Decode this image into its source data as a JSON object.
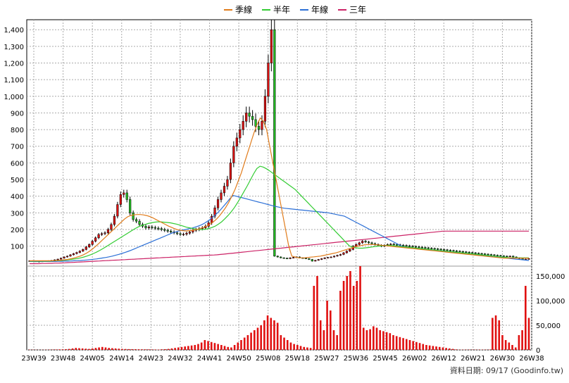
{
  "chart_data": [
    {
      "type": "candlestick",
      "legend_position": "top-center",
      "legend": [
        {
          "label": "季線",
          "color": "#e07b1a"
        },
        {
          "label": "半年",
          "color": "#33cc33"
        },
        {
          "label": "年線",
          "color": "#2b6fd6"
        },
        {
          "label": "三年",
          "color": "#cc2266"
        }
      ],
      "y_ticks": [
        100,
        200,
        300,
        400,
        500,
        600,
        700,
        800,
        900,
        1000,
        1100,
        1200,
        1300,
        1400
      ],
      "y_tick_labels": [
        "100",
        "200",
        "300",
        "400",
        "500",
        "600",
        "700",
        "800",
        "900",
        "1,000",
        "1,100",
        "1,200",
        "1,300",
        "1,400"
      ],
      "ylim": [
        -20,
        1460
      ],
      "x_ticks": [
        "23W39",
        "23W48",
        "24W05",
        "24W14",
        "24W23",
        "24W32",
        "24W41",
        "24W50",
        "25W08",
        "25W18",
        "25W27",
        "25W36",
        "25W45",
        "26W02",
        "26W12",
        "26W21",
        "26W30",
        "26W38"
      ],
      "grid": true,
      "up_color": "#dd1111",
      "down_color": "#22bb22",
      "closes": [
        12,
        10,
        9,
        8,
        10,
        11,
        12,
        14,
        18,
        22,
        28,
        35,
        40,
        48,
        55,
        62,
        70,
        80,
        95,
        110,
        130,
        150,
        170,
        175,
        180,
        200,
        230,
        280,
        350,
        410,
        420,
        380,
        300,
        260,
        250,
        230,
        220,
        210,
        215,
        212,
        208,
        205,
        200,
        195,
        190,
        185,
        180,
        175,
        170,
        172,
        178,
        185,
        195,
        200,
        205,
        210,
        220,
        240,
        280,
        330,
        380,
        420,
        460,
        500,
        600,
        700,
        750,
        800,
        850,
        900,
        880,
        860,
        820,
        800,
        850,
        1000,
        1200,
        1400,
        40,
        35,
        30,
        28,
        25,
        30,
        32,
        35,
        30,
        28,
        25,
        20,
        10,
        15,
        20,
        25,
        30,
        32,
        35,
        40,
        45,
        50,
        60,
        70,
        80,
        100,
        110,
        120,
        130,
        125,
        120,
        115,
        110,
        105,
        100,
        105,
        110,
        112,
        110,
        108,
        106,
        104,
        102,
        100,
        98,
        96,
        94,
        92,
        90,
        88,
        86,
        84,
        82,
        80,
        78,
        76,
        74,
        72,
        70,
        68,
        66,
        64,
        62,
        60,
        58,
        56,
        54,
        52,
        50,
        48,
        46,
        44,
        42,
        40,
        38,
        40,
        35,
        30,
        25,
        20,
        22,
        25
      ],
      "ma_quarter": [
        12,
        12,
        12,
        12,
        12,
        12,
        12,
        12,
        13,
        14,
        16,
        18,
        20,
        24,
        28,
        34,
        40,
        48,
        58,
        70,
        84,
        100,
        118,
        136,
        154,
        172,
        190,
        208,
        226,
        244,
        262,
        276,
        284,
        288,
        290,
        290,
        288,
        284,
        278,
        270,
        260,
        250,
        240,
        230,
        220,
        212,
        204,
        198,
        194,
        192,
        192,
        194,
        196,
        200,
        206,
        212,
        220,
        230,
        244,
        260,
        280,
        304,
        330,
        362,
        400,
        440,
        490,
        540,
        600,
        660,
        720,
        780,
        830,
        870,
        850,
        800,
        700,
        600,
        500,
        400,
        300,
        200,
        100,
        40,
        35,
        30,
        30,
        30,
        32,
        34,
        36,
        38,
        40,
        44,
        48,
        52,
        56,
        60,
        66,
        72,
        78,
        84,
        90,
        96,
        100,
        104,
        108,
        110,
        110,
        110,
        108,
        106,
        104,
        102,
        100,
        98,
        96,
        94,
        92,
        90,
        88,
        86,
        84,
        82,
        80,
        78,
        76,
        74,
        72,
        70,
        68,
        66,
        64,
        62,
        60,
        58,
        56,
        54,
        52,
        50,
        48,
        46,
        44,
        42,
        40,
        38,
        36,
        34,
        32,
        30,
        28,
        28,
        28,
        28,
        28,
        28,
        28,
        28,
        28
      ],
      "ma_half": [
        10,
        10,
        10,
        10,
        10,
        10,
        10,
        11,
        12,
        13,
        14,
        16,
        18,
        20,
        23,
        26,
        30,
        35,
        41,
        48,
        56,
        65,
        75,
        86,
        98,
        110,
        122,
        134,
        146,
        158,
        170,
        182,
        194,
        206,
        216,
        224,
        230,
        236,
        240,
        244,
        246,
        246,
        244,
        242,
        240,
        236,
        232,
        226,
        220,
        214,
        210,
        206,
        202,
        200,
        200,
        202,
        206,
        212,
        220,
        232,
        246,
        264,
        284,
        306,
        332,
        362,
        394,
        428,
        462,
        498,
        534,
        566,
        580,
        575,
        565,
        552,
        538,
        524,
        510,
        496,
        482,
        468,
        454,
        440,
        420,
        400,
        380,
        360,
        340,
        320,
        300,
        280,
        260,
        240,
        220,
        200,
        180,
        160,
        140,
        120,
        100,
        95,
        90,
        88,
        88,
        90,
        92,
        95,
        98,
        100,
        102,
        104,
        105,
        104,
        102,
        100,
        98,
        96,
        94,
        92,
        90,
        88,
        86,
        84,
        82,
        80,
        78,
        76,
        74,
        72,
        70,
        68,
        66,
        64,
        62,
        60,
        58,
        56,
        54,
        52,
        50,
        48,
        46,
        44,
        42,
        40,
        38,
        36,
        34,
        32,
        30,
        30,
        30,
        30,
        30,
        30,
        30
      ],
      "ma_year": [
        8,
        8,
        8,
        8,
        8,
        8,
        8,
        8,
        8,
        9,
        9,
        10,
        10,
        11,
        12,
        13,
        14,
        15,
        17,
        19,
        21,
        23,
        26,
        29,
        32,
        36,
        40,
        45,
        50,
        56,
        62,
        69,
        76,
        84,
        92,
        100,
        108,
        116,
        124,
        132,
        140,
        148,
        156,
        164,
        172,
        180,
        186,
        192,
        196,
        200,
        204,
        208,
        214,
        220,
        228,
        238,
        250,
        264,
        280,
        298,
        318,
        340,
        362,
        386,
        404,
        400,
        395,
        390,
        385,
        380,
        375,
        370,
        365,
        360,
        355,
        350,
        345,
        340,
        336,
        332,
        328,
        326,
        324,
        322,
        320,
        318,
        316,
        314,
        312,
        310,
        308,
        306,
        304,
        302,
        300,
        296,
        292,
        288,
        284,
        280,
        270,
        260,
        250,
        240,
        230,
        220,
        210,
        200,
        190,
        180,
        170,
        160,
        150,
        140,
        130,
        120,
        110,
        100,
        95,
        90,
        88,
        86,
        84,
        82,
        80,
        78,
        76,
        74,
        72,
        70,
        68,
        66,
        64,
        62,
        60,
        58,
        56,
        54,
        52,
        50,
        48,
        46,
        44,
        42,
        40,
        38,
        36,
        34,
        32,
        30,
        28,
        26,
        24,
        22,
        20,
        18,
        16,
        14
      ],
      "ma_3year": [
        -5,
        -5,
        -5,
        -5,
        -4,
        -4,
        -3,
        -3,
        -2,
        -2,
        -1,
        0,
        1,
        2,
        3,
        4,
        5,
        6,
        7,
        8,
        9,
        10,
        11,
        12,
        13,
        14,
        15,
        16,
        17,
        18,
        19,
        20,
        21,
        22,
        23,
        24,
        25,
        26,
        27,
        28,
        29,
        30,
        31,
        32,
        33,
        34,
        35,
        36,
        37,
        38,
        39,
        40,
        41,
        42,
        43,
        44,
        45,
        46,
        47,
        48,
        50,
        52,
        54,
        56,
        58,
        60,
        62,
        64,
        66,
        68,
        70,
        72,
        74,
        76,
        78,
        80,
        82,
        84,
        86,
        88,
        90,
        92,
        94,
        96,
        98,
        100,
        102,
        104,
        106,
        108,
        110,
        112,
        114,
        116,
        118,
        120,
        122,
        124,
        126,
        128,
        130,
        132,
        134,
        136,
        138,
        140,
        142,
        144,
        146,
        148,
        150,
        152,
        154,
        156,
        158,
        160,
        162,
        164,
        166,
        168,
        170,
        172,
        174,
        176,
        178,
        180,
        182,
        184,
        186,
        188,
        190,
        190,
        190,
        190,
        190,
        190,
        190,
        190,
        190,
        190,
        190,
        190,
        190,
        190,
        190,
        190,
        190,
        190,
        190,
        190,
        190,
        190,
        190,
        190,
        190,
        190,
        190,
        190
      ],
      "volume_ticks": [
        0,
        50000,
        100000,
        150000
      ],
      "volume_tick_labels": [
        "0",
        "50,000",
        "100,000",
        "150,000"
      ],
      "volume_max": 170000,
      "volumes": [
        500,
        400,
        300,
        200,
        300,
        400,
        500,
        600,
        800,
        1000,
        1200,
        1500,
        2000,
        3000,
        4000,
        3500,
        3000,
        2500,
        2000,
        3000,
        4000,
        5000,
        6000,
        5000,
        4000,
        3500,
        3000,
        2500,
        2000,
        1800,
        1600,
        1500,
        1400,
        1300,
        1200,
        1100,
        1000,
        900,
        800,
        700,
        1200,
        1500,
        2000,
        3000,
        4000,
        5000,
        6000,
        7000,
        8000,
        9000,
        10000,
        12000,
        15000,
        20000,
        18000,
        16000,
        14000,
        12000,
        10000,
        8000,
        6000,
        5000,
        10000,
        15000,
        20000,
        25000,
        30000,
        35000,
        40000,
        45000,
        50000,
        60000,
        70000,
        65000,
        60000,
        55000,
        30000,
        25000,
        20000,
        15000,
        12000,
        10000,
        8000,
        6000,
        5000,
        4000,
        130000,
        150000,
        60000,
        40000,
        100000,
        80000,
        40000,
        30000,
        120000,
        140000,
        150000,
        160000,
        130000,
        140000,
        170000,
        45000,
        40000,
        42000,
        48000,
        45000,
        40000,
        38000,
        36000,
        34000,
        30000,
        28000,
        26000,
        24000,
        22000,
        20000,
        18000,
        16000,
        14000,
        12000,
        10000,
        9000,
        8000,
        7000,
        6000,
        5000,
        4000,
        3000,
        2000,
        1000,
        500,
        500,
        500,
        500,
        500,
        500,
        500,
        500,
        500,
        500,
        65000,
        70000,
        60000,
        30000,
        20000,
        15000,
        10000,
        5000,
        30000,
        40000,
        130000,
        65000
      ],
      "footer_text": "資料日期: 09/17  (Goodinfo.tw)"
    }
  ]
}
